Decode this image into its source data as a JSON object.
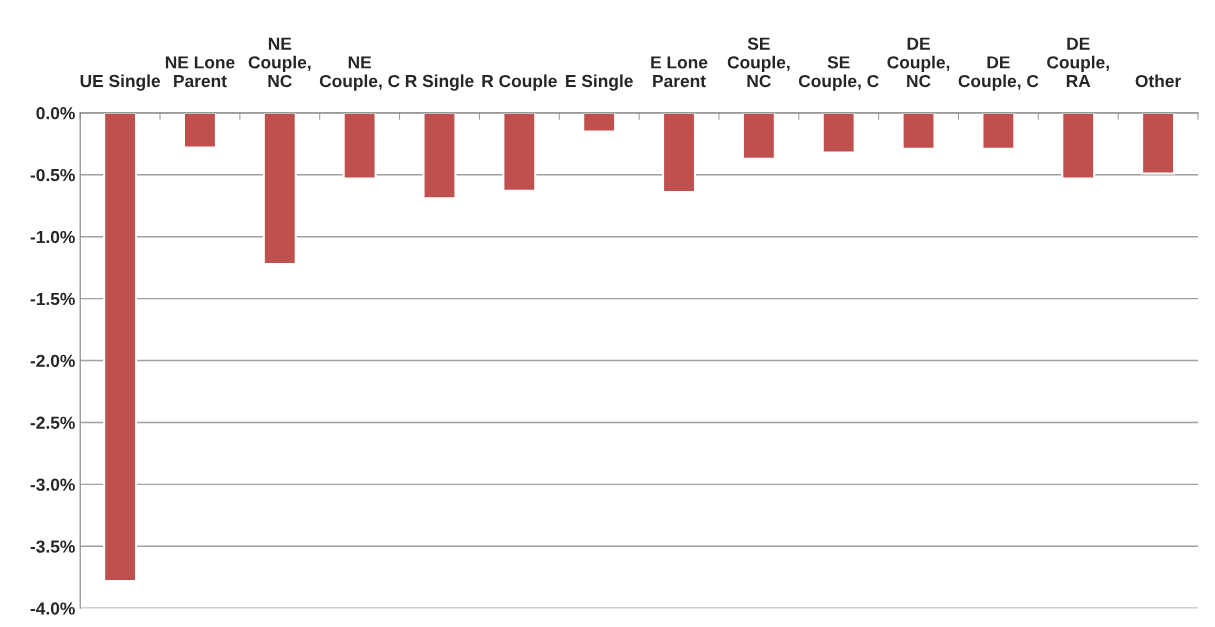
{
  "chart_data": {
    "type": "bar",
    "categories": [
      "UE Single",
      "NE Lone\nParent",
      "NE\nCouple,\nNC",
      "NE\nCouple, C",
      "R Single",
      "R Couple",
      "E Single",
      "E Lone\nParent",
      "SE\nCouple,\nNC",
      "SE\nCouple, C",
      "DE\nCouple,\nNC",
      "DE\nCouple, C",
      "DE\nCouple,\nRA",
      "Other"
    ],
    "values": [
      -3.78,
      -0.28,
      -1.22,
      -0.53,
      -0.69,
      -0.63,
      -0.15,
      -0.64,
      -0.37,
      -0.32,
      -0.29,
      -0.29,
      -0.53,
      -0.49
    ],
    "color": "#c0504d",
    "ylim": [
      -4.0,
      0.0
    ],
    "yticks": [
      {
        "value": -4.0,
        "label": "-4.0%"
      },
      {
        "value": -3.5,
        "label": "-3.5%"
      },
      {
        "value": -3.0,
        "label": "-3.0%"
      },
      {
        "value": -2.5,
        "label": "-2.5%"
      },
      {
        "value": -2.0,
        "label": "-2.0%"
      },
      {
        "value": -1.5,
        "label": "-1.5%"
      },
      {
        "value": -1.0,
        "label": "-1.0%"
      },
      {
        "value": -0.5,
        "label": "-0.5%"
      },
      {
        "value": 0.0,
        "label": "0.0%"
      }
    ],
    "grid": "y",
    "legend": false
  }
}
